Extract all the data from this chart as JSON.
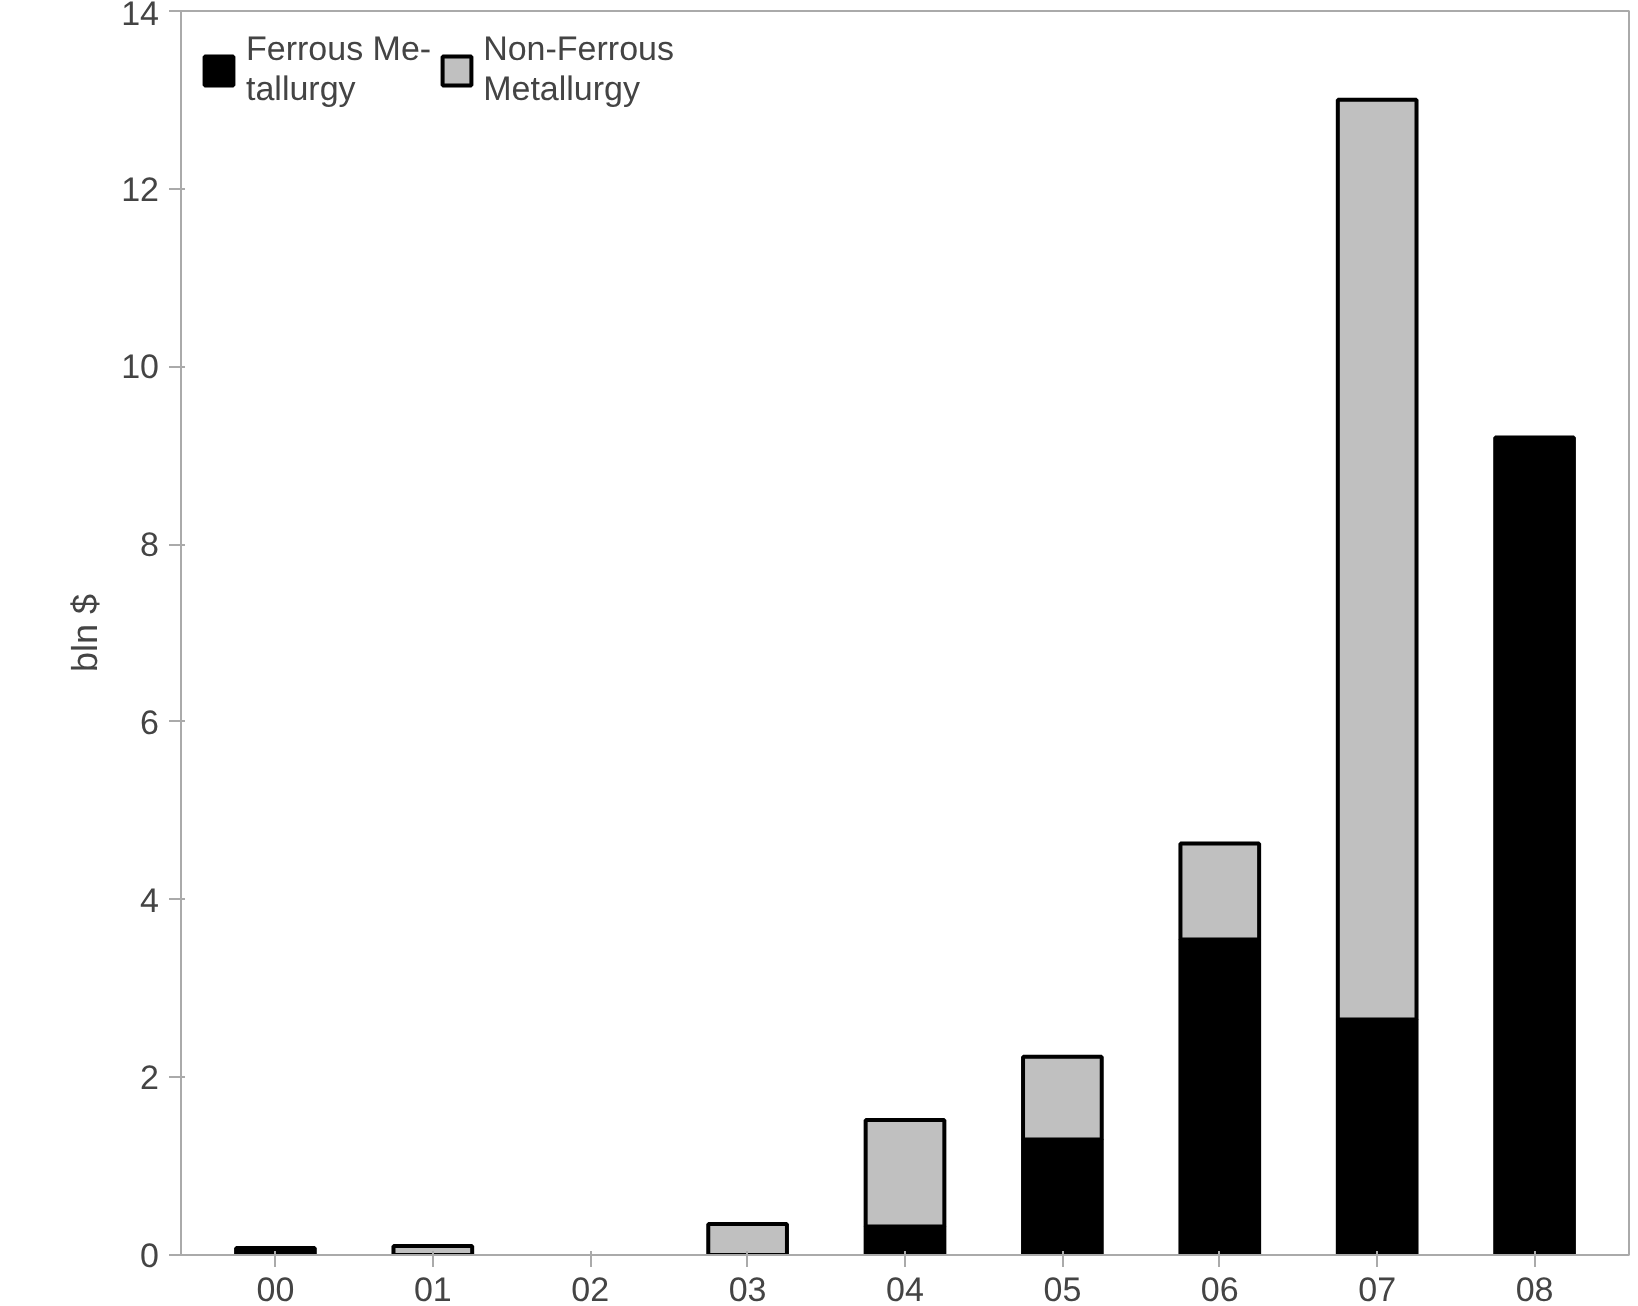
{
  "chart_data": {
    "type": "bar",
    "stacked": true,
    "ylabel": "bln $",
    "categories": [
      "00",
      "01",
      "02",
      "03",
      "04",
      "05",
      "06",
      "07",
      "08"
    ],
    "series": [
      {
        "name": "Ferrous Me-\ntallurgy",
        "color": "#000000",
        "values": [
          0.08,
          0,
          0,
          0,
          0.32,
          1.3,
          3.55,
          2.65,
          9.2
        ]
      },
      {
        "name": "Non-Ferrous\nMetallurgy",
        "color": "#c0c0c0",
        "values": [
          0,
          0.1,
          0,
          0.35,
          1.2,
          0.93,
          1.08,
          10.35,
          0
        ]
      }
    ],
    "ylim": [
      0,
      14
    ],
    "yticks": [
      0,
      2,
      4,
      6,
      8,
      10,
      12,
      14
    ],
    "grid": false,
    "legend": "top left"
  }
}
